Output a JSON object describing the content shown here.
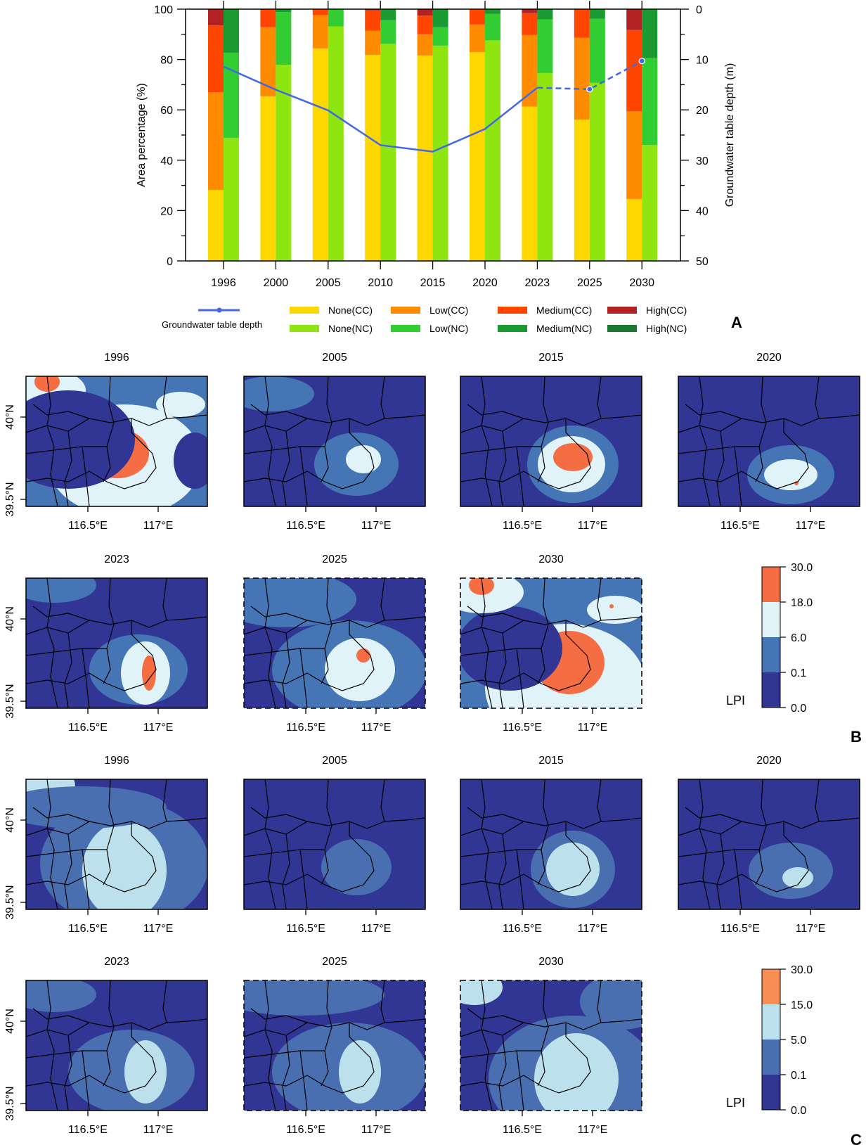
{
  "figure": {
    "panel_labels": [
      "A",
      "B",
      "C"
    ]
  },
  "chart_data": [
    {
      "panel": "A",
      "type": "bar",
      "subtype": "stacked-grouped-bar-with-line",
      "categories": [
        "1996",
        "2000",
        "2005",
        "2010",
        "2015",
        "2020",
        "2023",
        "2025",
        "2030"
      ],
      "ylabel": "Area percentage (%)",
      "ylim": [
        0,
        100
      ],
      "yticks": [
        "0",
        "20",
        "40",
        "60",
        "80",
        "100"
      ],
      "y2label": "Groundwater table depth (m)",
      "y2lim": [
        50,
        0
      ],
      "y2ticks": [
        "50",
        "40",
        "30",
        "20",
        "10",
        "0"
      ],
      "groups": [
        {
          "name": "CC",
          "series": [
            {
              "name": "None(CC)",
              "color": "#FFD700",
              "values": [
                28.2,
                65.4,
                84.4,
                81.8,
                81.6,
                82.9,
                61.3,
                56.1,
                24.6
              ]
            },
            {
              "name": "Low(CC)",
              "color": "#FF8C00",
              "values": [
                38.8,
                27.4,
                13.2,
                9.6,
                8.4,
                11.0,
                28.4,
                32.5,
                34.8
              ]
            },
            {
              "name": "Medium(CC)",
              "color": "#FF4500",
              "values": [
                26.5,
                7.2,
                2.4,
                8.1,
                7.4,
                6.1,
                8.7,
                11.4,
                32.3
              ]
            },
            {
              "name": "High(CC)",
              "color": "#B22222",
              "values": [
                6.5,
                0.0,
                0.0,
                0.5,
                2.6,
                0.0,
                1.6,
                0.0,
                8.3
              ]
            }
          ]
        },
        {
          "name": "NC",
          "series": [
            {
              "name": "None(NC)",
              "color": "#8EE510",
              "values": [
                48.8,
                77.9,
                93.1,
                86.2,
                85.5,
                87.6,
                74.6,
                70.7,
                46.0
              ]
            },
            {
              "name": "Low(NC)",
              "color": "#32CD32",
              "values": [
                33.9,
                20.9,
                6.9,
                9.4,
                7.3,
                10.5,
                21.3,
                25.5,
                34.6
              ]
            },
            {
              "name": "Medium(NC)",
              "color": "#1A9A31",
              "values": [
                17.3,
                1.2,
                0.0,
                4.4,
                7.2,
                1.9,
                4.1,
                3.8,
                19.4
              ]
            },
            {
              "name": "High(NC)",
              "color": "#187A2E",
              "values": [
                0,
                0,
                0,
                0,
                0,
                0,
                0,
                0,
                0
              ]
            }
          ]
        }
      ],
      "line": {
        "name": "Groundwater table depth",
        "color": "#4169E1",
        "axis": "right",
        "values": [
          11.4,
          16.0,
          20.1,
          27.0,
          28.3,
          23.8,
          15.6,
          15.9,
          10.3
        ],
        "dashed_from_index": 6,
        "marker_indices": [
          7,
          8
        ]
      },
      "legend": {
        "placement": "bottom",
        "entries": [
          "Groundwater table depth",
          "None(CC)",
          "Low(CC)",
          "Medium(CC)",
          "High(CC)",
          "None(NC)",
          "Low(NC)",
          "Medium(NC)",
          "High(NC)"
        ]
      }
    },
    {
      "panel": "B",
      "type": "heatmap",
      "subtype": "contour-map-grid",
      "panels": [
        "1996",
        "2005",
        "2015",
        "2020",
        "2023",
        "2025",
        "2030"
      ],
      "projected_panels": [
        "2025",
        "2030"
      ],
      "xticks": [
        "116.5°E",
        "117°E"
      ],
      "yticks": [
        "40°N",
        "39.5°N"
      ],
      "colorbar": {
        "label": "LPI",
        "ticks": [
          "0.0",
          "0.1",
          "6.0",
          "18.0",
          "30.0"
        ],
        "colors": [
          "#313695",
          "#4575B4",
          "#E0F3F8",
          "#F46D43"
        ]
      }
    },
    {
      "panel": "C",
      "type": "heatmap",
      "subtype": "contour-map-grid",
      "panels": [
        "1996",
        "2005",
        "2015",
        "2020",
        "2023",
        "2025",
        "2030"
      ],
      "projected_panels": [
        "2025",
        "2030"
      ],
      "xticks": [
        "116.5°E",
        "117°E"
      ],
      "yticks": [
        "40°N",
        "39.5°N"
      ],
      "colorbar": {
        "label": "LPI",
        "ticks": [
          "0.0",
          "0.1",
          "5.0",
          "15.0",
          "30.0"
        ],
        "colors": [
          "#313695",
          "#4A6FB0",
          "#BCE1EC",
          "#F98E52"
        ]
      }
    }
  ]
}
